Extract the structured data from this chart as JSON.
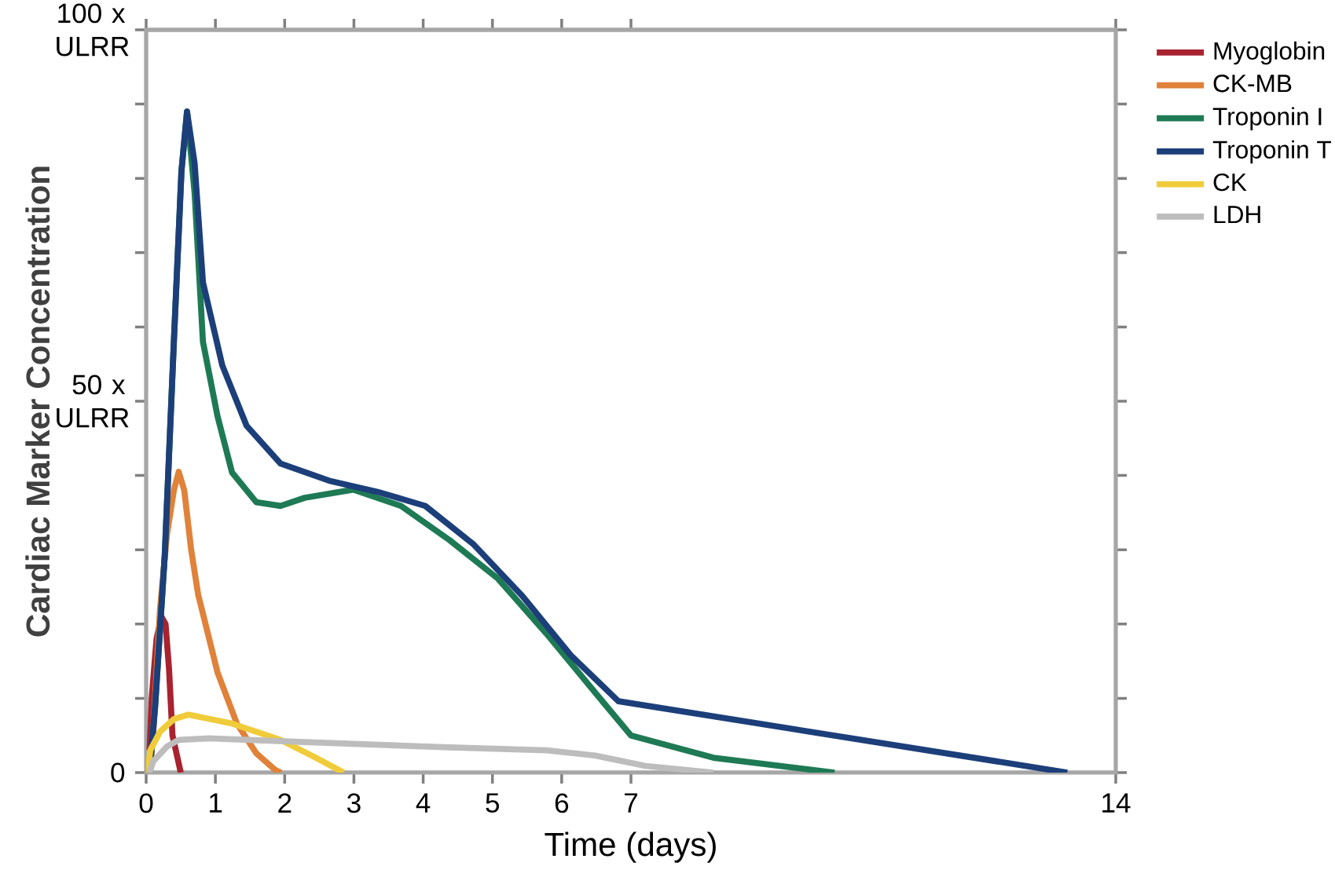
{
  "chart_data": {
    "type": "line",
    "xlabel": "Time (days)",
    "ylabel": "Cardiac Marker Concentration",
    "xlim": [
      0,
      14
    ],
    "xticks": [
      0,
      1,
      2,
      3,
      4,
      5,
      6,
      7,
      14
    ],
    "ylim": [
      0,
      100
    ],
    "yticks": [
      0,
      {
        "value": 10,
        "label": null
      },
      {
        "value": 20,
        "label": null
      },
      {
        "value": 30,
        "label": null
      },
      {
        "value": 40,
        "label": null
      },
      {
        "value": 50,
        "label": "50 x ULRR"
      },
      {
        "value": 60,
        "label": null
      },
      {
        "value": 70,
        "label": null
      },
      {
        "value": 80,
        "label": null
      },
      {
        "value": 90,
        "label": null
      },
      {
        "value": 100,
        "label": "100 x ULRR"
      }
    ],
    "grid": false,
    "legend": "top right",
    "marker": "none",
    "line_style": "solid",
    "series": [
      {
        "name": "Myoglobin",
        "color": "#a8232f",
        "x": [
          0.05,
          0.08,
          0.15,
          0.22,
          0.28,
          0.33,
          0.38,
          0.5
        ],
        "values": [
          3,
          10,
          18,
          21,
          20,
          14,
          5,
          0
        ]
      },
      {
        "name": "CK-MB",
        "color": "#e0823a",
        "x": [
          0.05,
          0.1,
          0.2,
          0.3,
          0.4,
          0.47,
          0.55,
          0.65,
          0.75,
          1.03,
          1.31,
          1.59,
          1.87,
          1.95
        ],
        "values": [
          0,
          5,
          22,
          32,
          38,
          40.5,
          38,
          30,
          24,
          13.5,
          6.6,
          2.6,
          0.3,
          0
        ]
      },
      {
        "name": "Troponin I",
        "color": "#1e7a55",
        "x": [
          0.05,
          0.13,
          0.27,
          0.4,
          0.51,
          0.59,
          0.7,
          0.82,
          1.03,
          1.24,
          1.59,
          1.94,
          2.29,
          2.99,
          3.68,
          4.38,
          5.08,
          5.78,
          6.48,
          7,
          8.19,
          9.94
        ],
        "values": [
          0,
          9,
          29.5,
          58,
          81,
          89,
          78,
          58,
          48,
          40.4,
          36.4,
          35.9,
          37,
          38.1,
          35.9,
          31.3,
          26.1,
          18.7,
          10.8,
          5,
          2,
          0
        ]
      },
      {
        "name": "Troponin T",
        "color": "#1c3f7a",
        "x": [
          0.05,
          0.13,
          0.27,
          0.4,
          0.51,
          0.59,
          0.7,
          0.82,
          1.1,
          1.45,
          1.94,
          2.64,
          3.34,
          4.03,
          4.73,
          5.43,
          6.13,
          6.82,
          13.3
        ],
        "values": [
          0,
          9,
          29.5,
          58,
          81,
          89,
          82,
          66,
          54.8,
          46.7,
          41.6,
          39.3,
          37.8,
          35.9,
          30.7,
          23.8,
          15.8,
          9.6,
          0
        ]
      },
      {
        "name": "CK",
        "color": "#f0cc3a",
        "x": [
          0.02,
          0.06,
          0.2,
          0.4,
          0.61,
          1.24,
          1.94,
          2.43,
          2.85
        ],
        "values": [
          0,
          3,
          5.5,
          7.2,
          7.8,
          6.6,
          4.4,
          2.1,
          0
        ]
      },
      {
        "name": "LDH",
        "color": "#bdbdbd",
        "x": [
          0.05,
          0.1,
          0.3,
          0.47,
          0.9,
          2.29,
          4.38,
          5.78,
          6.48,
          7.21,
          8.19
        ],
        "values": [
          0,
          1.5,
          3.5,
          4.4,
          4.6,
          4.1,
          3.4,
          3,
          2.3,
          0.9,
          0
        ]
      }
    ]
  }
}
